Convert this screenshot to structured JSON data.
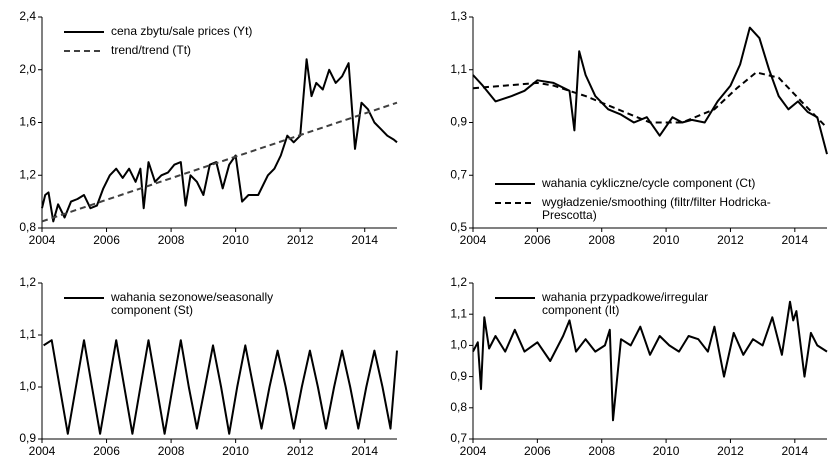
{
  "chart_data": [
    {
      "type": "line",
      "xlim": [
        2004,
        2015
      ],
      "xticks": [
        2004,
        2006,
        2008,
        2010,
        2012,
        2014
      ],
      "ylim": [
        0.8,
        2.4
      ],
      "yticks": [
        {
          "value": 0.8,
          "label": "0,8"
        },
        {
          "value": 1.2,
          "label": "1,2"
        },
        {
          "value": 1.6,
          "label": "1,6"
        },
        {
          "value": 2.0,
          "label": "2,0"
        },
        {
          "value": 2.4,
          "label": "2,4"
        }
      ],
      "legend": "upper left",
      "series": [
        {
          "name": "cena zbytu/sale prices (Yt)",
          "color": "#000000",
          "linestyle": "solid",
          "x": [
            2004,
            2004.1,
            2004.2,
            2004.35,
            2004.5,
            2004.7,
            2004.9,
            2005.1,
            2005.3,
            2005.5,
            2005.7,
            2005.9,
            2006.1,
            2006.3,
            2006.5,
            2006.7,
            2006.9,
            2007.05,
            2007.15,
            2007.3,
            2007.5,
            2007.7,
            2007.9,
            2008.1,
            2008.3,
            2008.45,
            2008.6,
            2008.8,
            2009.0,
            2009.2,
            2009.4,
            2009.6,
            2009.8,
            2010.0,
            2010.2,
            2010.4,
            2010.7,
            2011.0,
            2011.2,
            2011.4,
            2011.6,
            2011.8,
            2012.0,
            2012.2,
            2012.35,
            2012.5,
            2012.7,
            2012.9,
            2013.1,
            2013.3,
            2013.5,
            2013.7,
            2013.9,
            2014.1,
            2014.3,
            2014.5,
            2014.7,
            2014.9,
            2015
          ],
          "values": [
            0.95,
            1.05,
            1.07,
            0.85,
            0.98,
            0.88,
            1.0,
            1.02,
            1.05,
            0.95,
            0.97,
            1.1,
            1.2,
            1.25,
            1.18,
            1.25,
            1.15,
            1.25,
            0.95,
            1.3,
            1.15,
            1.2,
            1.22,
            1.28,
            1.3,
            0.97,
            1.2,
            1.15,
            1.05,
            1.28,
            1.3,
            1.1,
            1.28,
            1.35,
            1.0,
            1.05,
            1.05,
            1.2,
            1.25,
            1.35,
            1.5,
            1.45,
            1.5,
            2.08,
            1.8,
            1.9,
            1.85,
            2.0,
            1.9,
            1.95,
            2.05,
            1.4,
            1.75,
            1.7,
            1.6,
            1.55,
            1.5,
            1.47,
            1.45
          ]
        },
        {
          "name": "trend/trend (Tt)",
          "color": "#404040",
          "linestyle": "dashed",
          "x": [
            2004,
            2015
          ],
          "values": [
            0.85,
            1.75
          ]
        }
      ]
    },
    {
      "type": "line",
      "xlim": [
        2004,
        2015
      ],
      "xticks": [
        2004,
        2006,
        2008,
        2010,
        2012,
        2014
      ],
      "ylim": [
        0.5,
        1.3
      ],
      "yticks": [
        {
          "value": 0.5,
          "label": "0,5"
        },
        {
          "value": 0.7,
          "label": "0,7"
        },
        {
          "value": 0.9,
          "label": "0,9"
        },
        {
          "value": 1.1,
          "label": "1,1"
        },
        {
          "value": 1.3,
          "label": "1,3"
        }
      ],
      "legend": "lower left",
      "series": [
        {
          "name": "wahania cykliczne/cycle component (Ct)",
          "color": "#000000",
          "linestyle": "solid",
          "x": [
            2004,
            2004.3,
            2004.7,
            2005.2,
            2005.6,
            2006.0,
            2006.5,
            2007.0,
            2007.15,
            2007.3,
            2007.5,
            2007.8,
            2008.2,
            2008.6,
            2009.0,
            2009.4,
            2009.8,
            2010.2,
            2010.5,
            2010.8,
            2011.2,
            2011.6,
            2012.0,
            2012.3,
            2012.6,
            2012.9,
            2013.2,
            2013.5,
            2013.8,
            2014.1,
            2014.4,
            2014.7,
            2015
          ],
          "values": [
            1.08,
            1.04,
            0.98,
            1.0,
            1.02,
            1.06,
            1.05,
            1.02,
            0.87,
            1.17,
            1.08,
            1.0,
            0.95,
            0.93,
            0.9,
            0.92,
            0.85,
            0.92,
            0.9,
            0.91,
            0.9,
            0.98,
            1.04,
            1.12,
            1.26,
            1.22,
            1.1,
            1.0,
            0.95,
            0.98,
            0.94,
            0.92,
            0.78
          ]
        },
        {
          "name": "wygładzenie/smoothing (filtr/filter Hodricka-Prescotta)",
          "color": "#000000",
          "linestyle": "dashed",
          "x": [
            2004,
            2005,
            2006,
            2006.5,
            2007.5,
            2008.5,
            2009.5,
            2010.5,
            2011.5,
            2012.2,
            2012.8,
            2013.5,
            2014.2,
            2015
          ],
          "values": [
            1.03,
            1.04,
            1.05,
            1.04,
            1.0,
            0.95,
            0.9,
            0.9,
            0.95,
            1.03,
            1.09,
            1.07,
            0.98,
            0.88
          ]
        }
      ]
    },
    {
      "type": "line",
      "xlim": [
        2004,
        2015
      ],
      "xticks": [
        2004,
        2006,
        2008,
        2010,
        2012,
        2014
      ],
      "ylim": [
        0.9,
        1.2
      ],
      "yticks": [
        {
          "value": 0.9,
          "label": "0,9"
        },
        {
          "value": 1.0,
          "label": "1,0"
        },
        {
          "value": 1.1,
          "label": "1,1"
        },
        {
          "value": 1.2,
          "label": "1,2"
        }
      ],
      "legend": "upper left",
      "series": [
        {
          "name": "wahania sezonowe/seasonally component (St)",
          "color": "#000000",
          "linestyle": "solid",
          "x": [
            2004.05,
            2004.3,
            2004.55,
            2004.8,
            2005.05,
            2005.3,
            2005.55,
            2005.8,
            2006.05,
            2006.3,
            2006.55,
            2006.8,
            2007.05,
            2007.3,
            2007.55,
            2007.8,
            2008.05,
            2008.3,
            2008.55,
            2008.8,
            2009.05,
            2009.3,
            2009.55,
            2009.8,
            2010.05,
            2010.3,
            2010.55,
            2010.8,
            2011.05,
            2011.3,
            2011.55,
            2011.8,
            2012.05,
            2012.3,
            2012.55,
            2012.8,
            2013.05,
            2013.3,
            2013.55,
            2013.8,
            2014.05,
            2014.3,
            2014.55,
            2014.8,
            2015
          ],
          "values": [
            1.08,
            1.09,
            1.0,
            0.91,
            1.0,
            1.09,
            1.0,
            0.91,
            1.0,
            1.09,
            1.0,
            0.91,
            1.0,
            1.09,
            1.0,
            0.91,
            1.0,
            1.09,
            1.0,
            0.92,
            1.0,
            1.08,
            1.0,
            0.91,
            1.0,
            1.08,
            1.0,
            0.92,
            1.0,
            1.07,
            1.0,
            0.92,
            1.0,
            1.07,
            1.0,
            0.92,
            1.0,
            1.07,
            1.0,
            0.92,
            1.0,
            1.07,
            1.0,
            0.92,
            1.07
          ]
        }
      ]
    },
    {
      "type": "line",
      "xlim": [
        2004,
        2015
      ],
      "xticks": [
        2004,
        2006,
        2008,
        2010,
        2012,
        2014
      ],
      "ylim": [
        0.7,
        1.2
      ],
      "yticks": [
        {
          "value": 0.7,
          "label": "0,7"
        },
        {
          "value": 0.8,
          "label": "0,8"
        },
        {
          "value": 0.9,
          "label": "0,9"
        },
        {
          "value": 1.0,
          "label": "1,0"
        },
        {
          "value": 1.1,
          "label": "1,1"
        },
        {
          "value": 1.2,
          "label": "1,2"
        }
      ],
      "legend": "upper left",
      "series": [
        {
          "name": "wahania przypadkowe/irregular component (It)",
          "color": "#000000",
          "linestyle": "solid",
          "x": [
            2004,
            2004.15,
            2004.25,
            2004.35,
            2004.5,
            2004.7,
            2005.0,
            2005.3,
            2005.6,
            2006.0,
            2006.4,
            2006.8,
            2007.0,
            2007.2,
            2007.5,
            2007.8,
            2008.1,
            2008.25,
            2008.35,
            2008.6,
            2008.9,
            2009.2,
            2009.5,
            2009.8,
            2010.1,
            2010.4,
            2010.7,
            2011.0,
            2011.3,
            2011.5,
            2011.8,
            2012.1,
            2012.4,
            2012.7,
            2013.0,
            2013.3,
            2013.6,
            2013.85,
            2013.95,
            2014.05,
            2014.3,
            2014.5,
            2014.7,
            2015
          ],
          "values": [
            0.98,
            1.01,
            0.86,
            1.09,
            0.99,
            1.03,
            0.98,
            1.05,
            0.98,
            1.01,
            0.95,
            1.03,
            1.08,
            0.98,
            1.02,
            0.98,
            1.0,
            1.05,
            0.76,
            1.02,
            1.0,
            1.06,
            0.97,
            1.03,
            1.0,
            0.98,
            1.03,
            1.02,
            0.98,
            1.06,
            0.9,
            1.04,
            0.97,
            1.02,
            1.0,
            1.09,
            0.97,
            1.14,
            1.08,
            1.11,
            0.9,
            1.04,
            1.0,
            0.98
          ]
        }
      ]
    }
  ]
}
